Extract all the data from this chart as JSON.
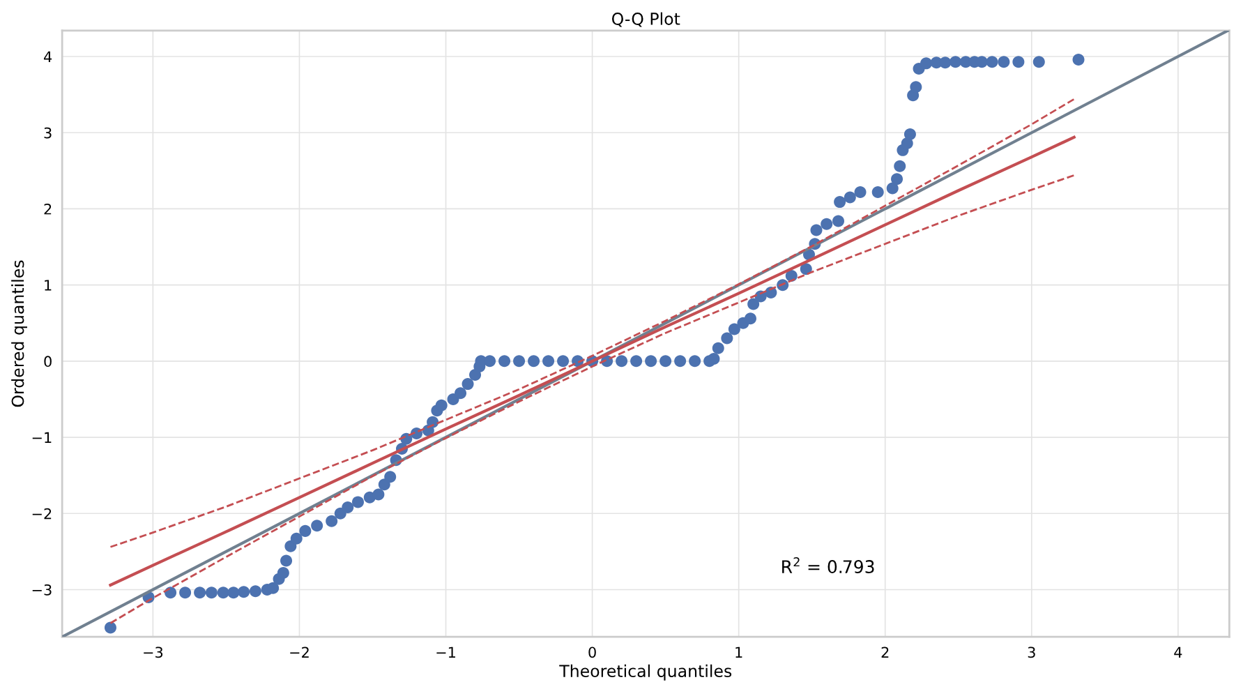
{
  "chart_data": {
    "type": "scatter",
    "title": "Q-Q Plot",
    "xlabel": "Theoretical quantiles",
    "ylabel": "Ordered quantiles",
    "xlim": [
      -3.62,
      4.35
    ],
    "ylim": [
      -3.62,
      4.34
    ],
    "xticks": [
      {
        "value": -3,
        "label": "−3"
      },
      {
        "value": -2,
        "label": "−2"
      },
      {
        "value": -1,
        "label": "−1"
      },
      0,
      1,
      2,
      3,
      4
    ],
    "yticks": [
      {
        "value": -3,
        "label": "−3"
      },
      {
        "value": -2,
        "label": "−2"
      },
      {
        "value": -1,
        "label": "−1"
      },
      0,
      1,
      2,
      3,
      4
    ],
    "grid": true,
    "legend": false,
    "annotations": [
      "R$^{2}$ = 0.793"
    ],
    "series": [
      {
        "marker": "circle",
        "color": "#4c72b0",
        "x": [
          -3.29,
          -3.03,
          -2.88,
          -2.78,
          -2.68,
          -2.6,
          -2.52,
          -2.45,
          -2.38,
          -2.3,
          -2.22,
          -2.18,
          -2.14,
          -2.11,
          -2.09,
          -2.06,
          -2.02,
          -1.96,
          -1.88,
          -1.78,
          -1.72,
          -1.67,
          -1.6,
          -1.52,
          -1.46,
          -1.42,
          -1.38,
          -1.34,
          -1.3,
          -1.27,
          -1.2,
          -1.12,
          -1.09,
          -1.06,
          -1.03,
          -0.95,
          -0.9,
          -0.85,
          -0.8,
          -0.77,
          -0.76,
          -0.7,
          -0.6,
          -0.5,
          -0.4,
          -0.3,
          -0.2,
          -0.1,
          0,
          0.1,
          0.2,
          0.3,
          0.4,
          0.5,
          0.6,
          0.7,
          0.8,
          0.83,
          0.86,
          0.92,
          0.97,
          1.03,
          1.08,
          1.1,
          1.15,
          1.22,
          1.3,
          1.36,
          1.46,
          1.48,
          1.52,
          1.53,
          1.6,
          1.68,
          1.69,
          1.76,
          1.83,
          1.95,
          2.05,
          2.08,
          2.1,
          2.12,
          2.15,
          2.17,
          2.19,
          2.21,
          2.23,
          2.28,
          2.35,
          2.41,
          2.48,
          2.55,
          2.61,
          2.66,
          2.73,
          2.81,
          2.91,
          3.05,
          3.32
        ],
        "values": [
          -3.5,
          -3.1,
          -3.04,
          -3.04,
          -3.04,
          -3.04,
          -3.04,
          -3.04,
          -3.03,
          -3.02,
          -3.0,
          -2.98,
          -2.86,
          -2.78,
          -2.62,
          -2.43,
          -2.33,
          -2.23,
          -2.16,
          -2.1,
          -2.0,
          -1.92,
          -1.85,
          -1.79,
          -1.75,
          -1.62,
          -1.52,
          -1.3,
          -1.15,
          -1.02,
          -0.95,
          -0.91,
          -0.8,
          -0.65,
          -0.58,
          -0.5,
          -0.42,
          -0.3,
          -0.18,
          -0.07,
          0,
          0,
          0,
          0,
          0,
          0,
          0,
          0,
          0,
          0,
          0,
          0,
          0,
          0,
          0,
          0,
          0,
          0.03,
          0.17,
          0.3,
          0.42,
          0.5,
          0.56,
          0.75,
          0.85,
          0.9,
          1.0,
          1.12,
          1.21,
          1.4,
          1.54,
          1.72,
          1.8,
          1.84,
          2.09,
          2.15,
          2.22,
          2.22,
          2.27,
          2.39,
          2.56,
          2.77,
          2.86,
          2.98,
          3.49,
          3.6,
          3.84,
          3.91,
          3.92,
          3.92,
          3.93,
          3.93,
          3.93,
          3.93,
          3.93,
          3.93,
          3.93,
          3.93,
          3.96
        ]
      },
      {
        "type": "line",
        "color": "#708090",
        "line_style": "solid",
        "x": [
          -3.62,
          4.34
        ],
        "values": [
          -3.62,
          4.34
        ]
      },
      {
        "type": "line",
        "color": "#c44e52",
        "line_style": "solid",
        "x": [
          -3.29,
          -3,
          -2.5,
          -2,
          -1.5,
          -1,
          -0.5,
          0,
          0.5,
          1,
          1.5,
          2,
          2.5,
          3,
          3.29
        ],
        "values": [
          -2.94,
          -2.68,
          -2.24,
          -1.79,
          -1.34,
          -0.89,
          -0.45,
          0,
          0.45,
          0.89,
          1.34,
          1.79,
          2.24,
          2.68,
          2.94
        ]
      },
      {
        "type": "line",
        "color": "#c44e52",
        "line_style": "dashed",
        "x": [
          -3.29,
          -3,
          -2.5,
          -2,
          -1.5,
          -1,
          -0.5,
          0,
          0.5,
          1,
          1.5,
          2,
          2.5,
          3,
          3.29
        ],
        "values": [
          -2.44,
          -2.25,
          -1.91,
          -1.54,
          -1.17,
          -0.77,
          -0.37,
          0.07,
          0.53,
          1.01,
          1.51,
          2.04,
          2.57,
          3.11,
          3.44
        ]
      },
      {
        "type": "line",
        "color": "#c44e52",
        "line_style": "dashed",
        "x": [
          -3.29,
          -3,
          -2.5,
          -2,
          -1.5,
          -1,
          -0.5,
          0,
          0.5,
          1,
          1.5,
          2,
          2.5,
          3,
          3.29
        ],
        "values": [
          -3.44,
          -3.11,
          -2.57,
          -2.04,
          -1.51,
          -1.01,
          -0.53,
          -0.07,
          0.37,
          0.77,
          1.17,
          1.54,
          1.91,
          2.25,
          2.44
        ]
      }
    ]
  }
}
